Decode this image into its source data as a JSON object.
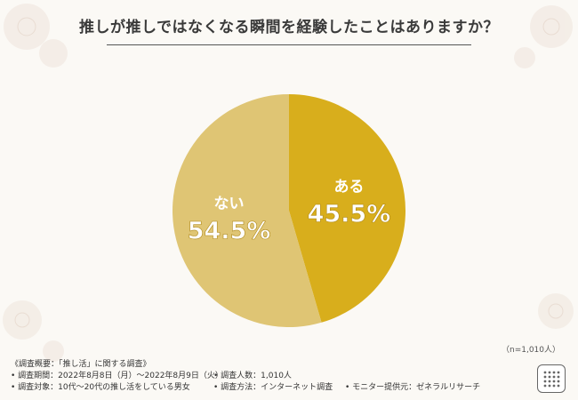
{
  "title": "推しが推しではなくなる瞬間を経験したことはありますか？",
  "chart_data": {
    "type": "pie",
    "categories": [
      "ある",
      "ない"
    ],
    "values": [
      45.5,
      54.5
    ],
    "value_labels": [
      "45.5%",
      "54.5%"
    ],
    "colors": [
      "#d8ae1c",
      "#dfc574"
    ],
    "start_angle": "12 o'clock",
    "direction": "clockwise"
  },
  "sample_size": "（n=1,010人）",
  "survey": {
    "heading": "《調査概要：「推し活」に関する調査》",
    "period": "• 調査期間：2022年8月8日（月）～2022年8月9日（火）",
    "count": "• 調査人数：1,010人",
    "target": "• 調査対象：10代～20代の推し活をしている男女",
    "method": "• 調査方法：インターネット調査",
    "provider": "• モニター提供元：ゼネラルリサーチ"
  }
}
